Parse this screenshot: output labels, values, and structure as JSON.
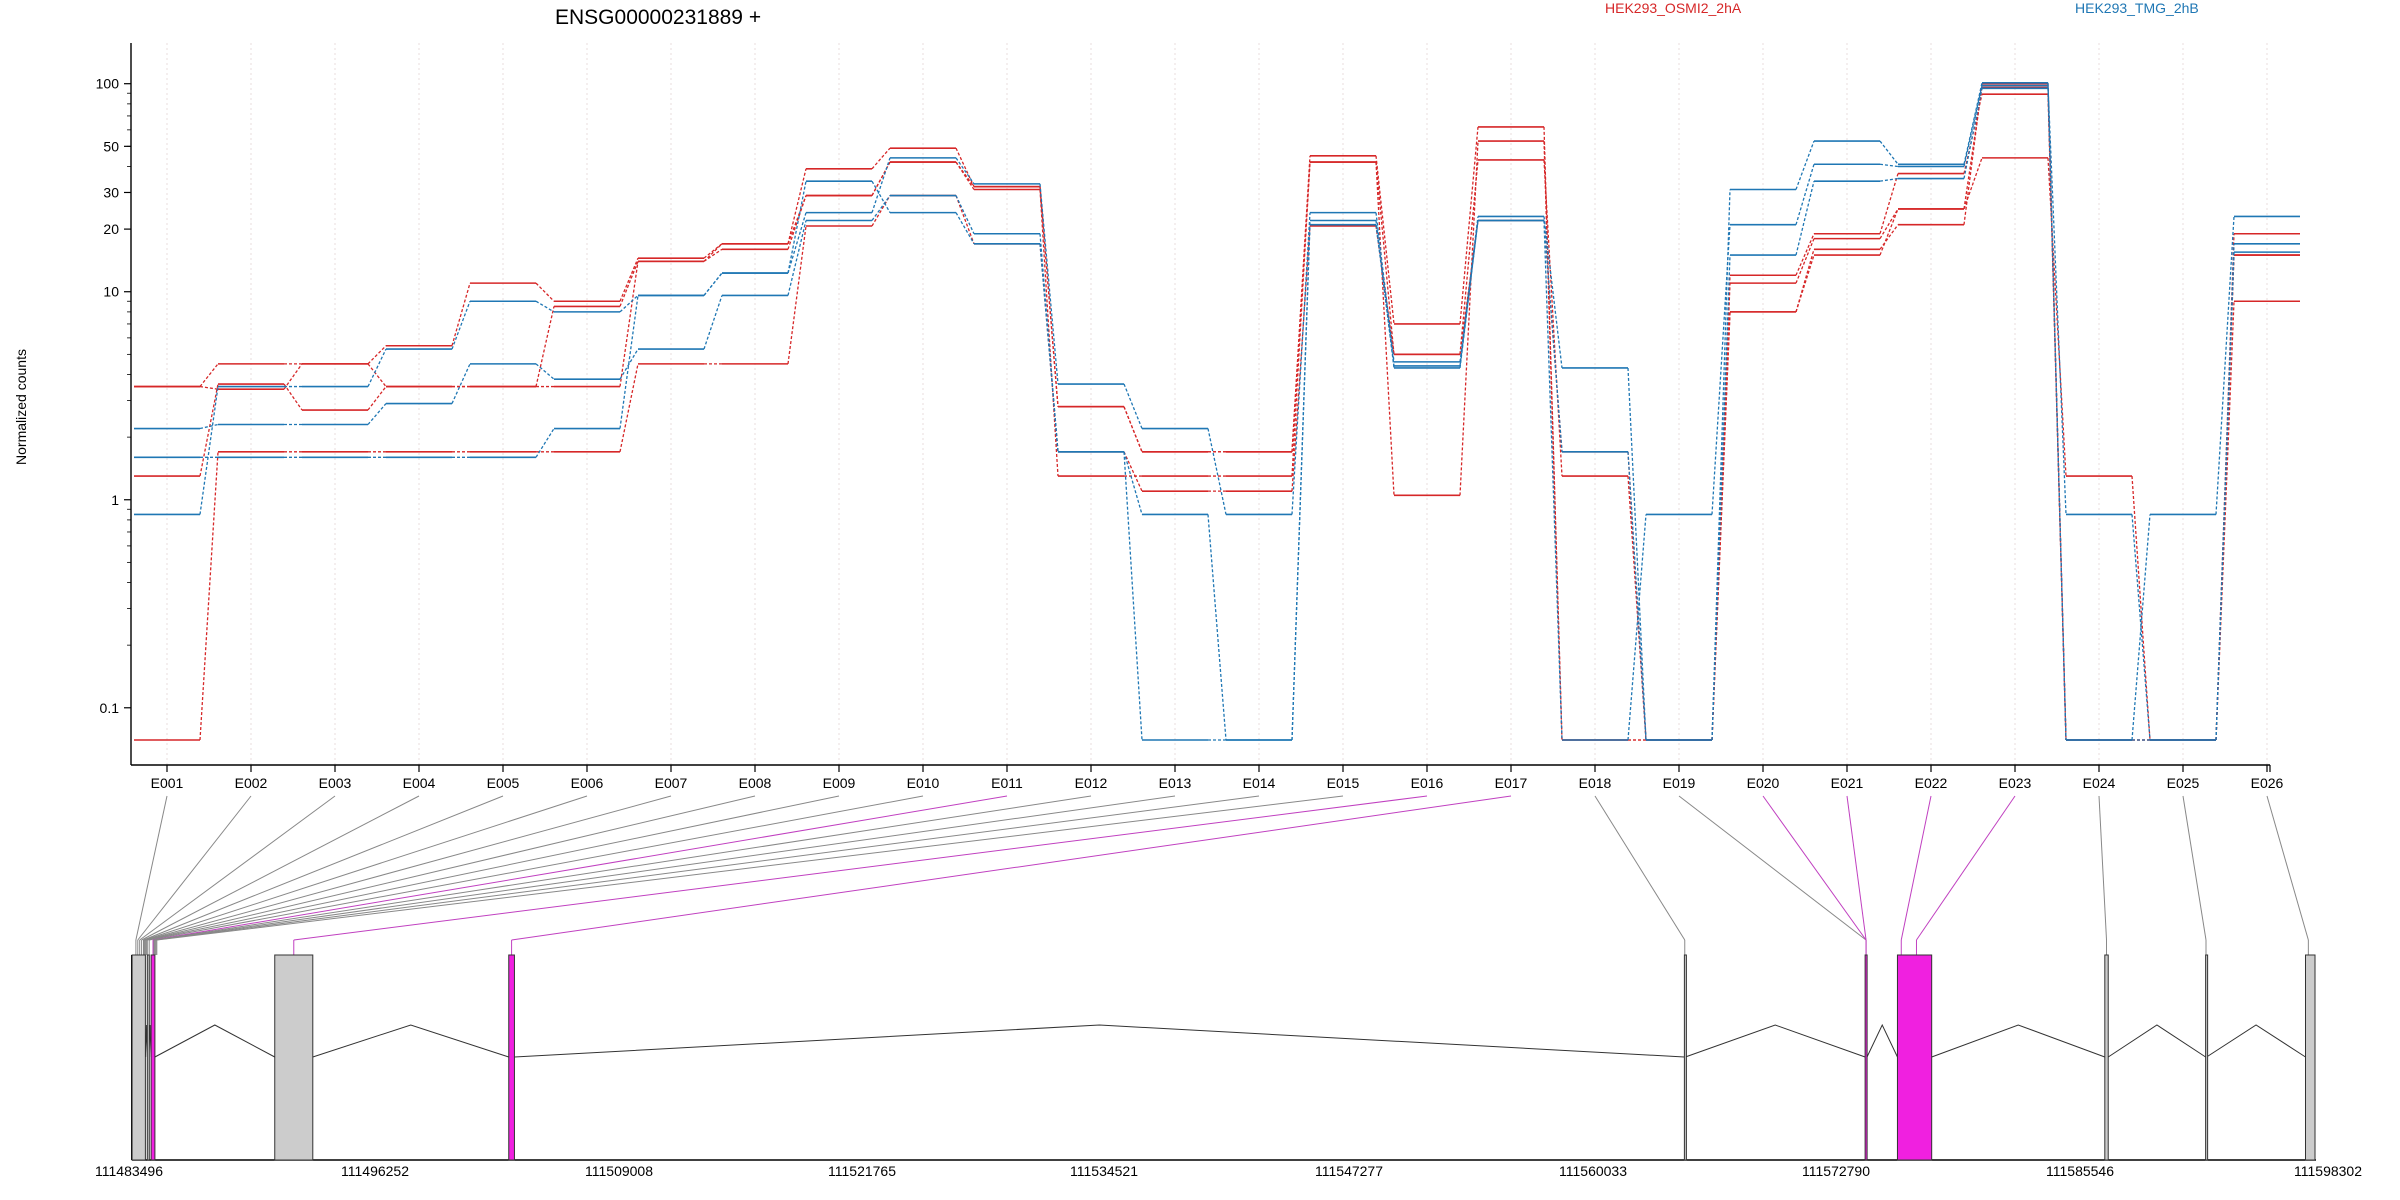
{
  "chart_data": {
    "type": "line",
    "title": "ENSG00000231889 +",
    "ylabel": "Normalized counts",
    "xlabel": "",
    "y_scale": "log",
    "ylim": [
      0.07,
      130
    ],
    "yticks": [
      0.1,
      1,
      10,
      20,
      30,
      50,
      100
    ],
    "grid": "vertical dotted",
    "legend": [
      {
        "name": "HEK293_OSMI2_2hA",
        "color": "#d62728"
      },
      {
        "name": "HEK293_TMG_2hB",
        "color": "#1f77b4"
      }
    ],
    "categories": [
      "E001",
      "E002",
      "E003",
      "E004",
      "E005",
      "E006",
      "E007",
      "E008",
      "E009",
      "E010",
      "E011",
      "E012",
      "E013",
      "E014",
      "E015",
      "E016",
      "E017",
      "E018",
      "E019",
      "E020",
      "E021",
      "E022",
      "E023",
      "E024",
      "E025",
      "E026"
    ],
    "series": [
      {
        "color": "#d62728",
        "values": [
          0.07,
          1.7,
          1.7,
          1.7,
          1.7,
          1.7,
          4.5,
          4.5,
          20.7,
          29,
          17,
          1.7,
          1.1,
          1.1,
          20.7,
          5,
          22,
          1.7,
          0.07,
          8,
          16,
          21,
          100,
          0.07,
          0.07,
          15
        ]
      },
      {
        "color": "#d62728",
        "values": [
          1.3,
          3.6,
          2.7,
          3.5,
          3.5,
          3.5,
          14,
          17,
          29,
          42,
          31,
          1.3,
          1.3,
          1.3,
          42,
          5,
          43,
          1.3,
          0.07,
          11,
          18,
          25,
          44,
          1.3,
          0.07,
          9
        ]
      },
      {
        "color": "#d62728",
        "values": [
          3.5,
          4.5,
          4.5,
          5.5,
          11,
          9,
          14.5,
          17,
          39,
          49,
          32,
          2.8,
          1.7,
          1.7,
          45,
          7,
          62,
          0.07,
          0.07,
          12,
          19,
          37,
          89,
          0.07,
          0.07,
          19
        ]
      },
      {
        "color": "#d62728",
        "values": [
          3.5,
          3.4,
          4.5,
          3.5,
          3.5,
          8.5,
          14,
          16,
          29,
          42,
          32,
          2.8,
          1.7,
          1.7,
          42,
          1.05,
          53,
          0.07,
          0.07,
          8,
          15,
          25,
          96,
          0.07,
          0.07,
          15
        ]
      },
      {
        "color": "#1f77b4",
        "values": [
          0.85,
          3.5,
          3.5,
          5.3,
          9,
          8,
          9.6,
          12.3,
          24,
          44,
          33,
          3.6,
          2.2,
          0.85,
          24,
          4.6,
          23,
          4.3,
          0.07,
          31,
          53,
          41,
          101,
          0.07,
          0.85,
          23
        ]
      },
      {
        "color": "#1f77b4",
        "values": [
          2.2,
          2.3,
          2.3,
          2.9,
          4.5,
          3.8,
          5.3,
          9.6,
          22,
          29,
          19,
          1.7,
          0.07,
          0.07,
          21,
          4.4,
          22,
          0.07,
          0.85,
          21,
          41,
          40,
          98,
          0.85,
          0.07,
          15.5
        ]
      },
      {
        "color": "#1f77b4",
        "values": [
          1.6,
          1.6,
          1.6,
          1.6,
          1.6,
          2.2,
          9.6,
          12.3,
          34,
          24,
          17,
          1.7,
          0.85,
          0.07,
          22,
          4.3,
          22,
          1.7,
          0.07,
          15,
          34,
          35,
          95,
          0.07,
          0.07,
          17
        ]
      }
    ],
    "gene_model": {
      "coordinate_labels": [
        "111483496",
        "111496252",
        "111509008",
        "111521765",
        "111534521",
        "111547277",
        "111560033",
        "111572790",
        "111585546",
        "111598302"
      ],
      "start": 111483496,
      "end": 111598302,
      "exons": [
        {
          "start": 111483500,
          "end": 111484200,
          "color": "#cccccc"
        },
        {
          "start": 111484300,
          "end": 111484380,
          "color": "#cccccc"
        },
        {
          "start": 111484500,
          "end": 111484700,
          "color": "#f020e0"
        },
        {
          "start": 111491000,
          "end": 111493000,
          "color": "#cccccc"
        },
        {
          "start": 111503300,
          "end": 111503600,
          "color": "#f020e0"
        },
        {
          "start": 111565100,
          "end": 111565150,
          "color": "#cccccc"
        },
        {
          "start": 111574600,
          "end": 111574700,
          "color": "#f020e0"
        },
        {
          "start": 111576300,
          "end": 111578100,
          "color": "#f020e0"
        },
        {
          "start": 111587200,
          "end": 111587380,
          "color": "#cccccc"
        },
        {
          "start": 111592500,
          "end": 111592550,
          "color": "#cccccc"
        },
        {
          "start": 111597750,
          "end": 111598250,
          "color": "#cccccc"
        }
      ],
      "highlight_color": "#c040c0",
      "mapping_color": "#888888",
      "exon_positions": [
        111483700,
        111483800,
        111483900,
        111484000,
        111484100,
        111484150,
        111484200,
        111484250,
        111484300,
        111484400,
        111484600,
        111484650,
        111484700,
        111484750,
        111484800,
        111492000,
        111503450,
        111565120,
        111574650,
        111574650,
        111574650,
        111576500,
        111577300,
        111587290,
        111592520,
        111597900
      ],
      "highlighted_exons": [
        "E011",
        "E016",
        "E017",
        "E020",
        "E021",
        "E022",
        "E023"
      ]
    }
  }
}
